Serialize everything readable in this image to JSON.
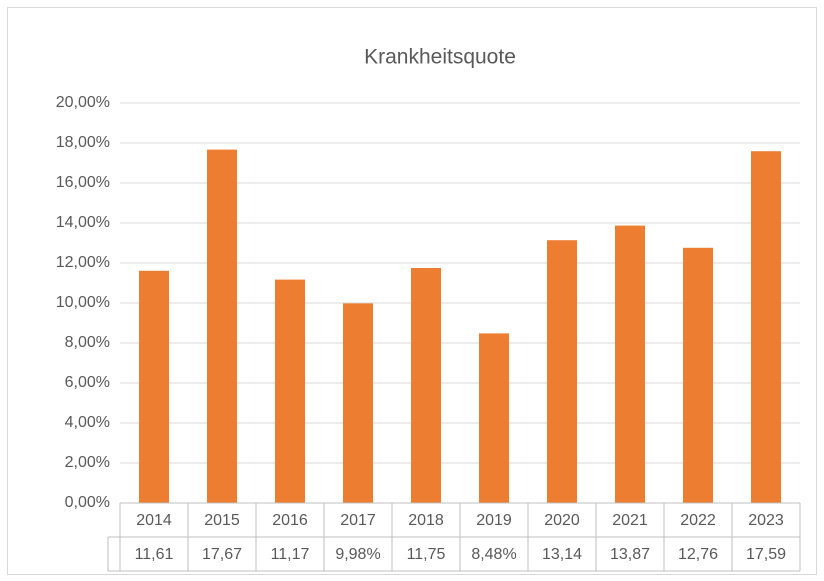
{
  "chart_data": {
    "type": "bar",
    "title": "Krankheitsquote",
    "categories": [
      "2014",
      "2015",
      "2016",
      "2017",
      "2018",
      "2019",
      "2020",
      "2021",
      "2022",
      "2023"
    ],
    "values": [
      11.61,
      17.67,
      11.17,
      9.98,
      11.75,
      8.48,
      13.14,
      13.87,
      12.76,
      17.59
    ],
    "value_labels": [
      "11,61",
      "17,67",
      "11,17",
      "9,98%",
      "11,75",
      "8,48%",
      "13,14",
      "13,87",
      "12,76",
      "17,59"
    ],
    "color": "#ed7d31",
    "ylim": [
      0,
      20
    ],
    "yticks": [
      {
        "value": 0,
        "label": "0,00%"
      },
      {
        "value": 2,
        "label": "2,00%"
      },
      {
        "value": 4,
        "label": "4,00%"
      },
      {
        "value": 6,
        "label": "6,00%"
      },
      {
        "value": 8,
        "label": "8,00%"
      },
      {
        "value": 10,
        "label": "10,00%"
      },
      {
        "value": 12,
        "label": "12,00%"
      },
      {
        "value": 14,
        "label": "14,00%"
      },
      {
        "value": 16,
        "label": "16,00%"
      },
      {
        "value": 18,
        "label": "18,00%"
      },
      {
        "value": 20,
        "label": "20,00%"
      }
    ],
    "grid": true
  }
}
